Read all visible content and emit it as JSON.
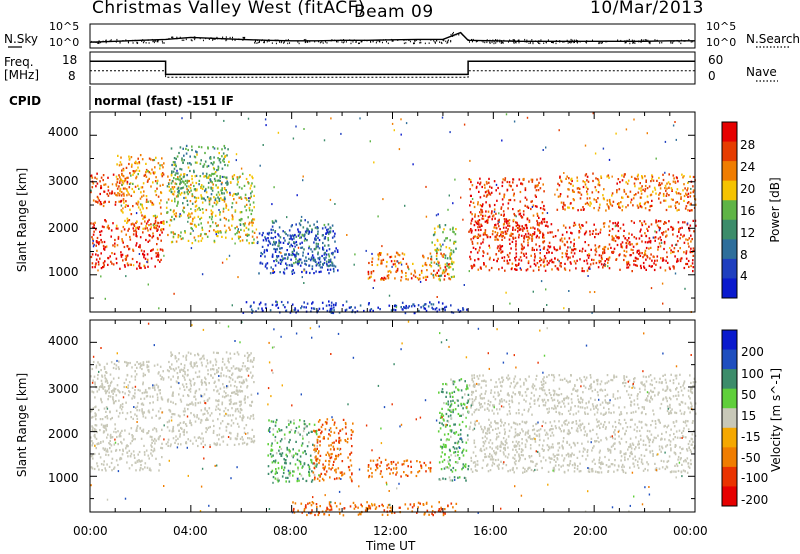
{
  "header": {
    "station": "Christmas Valley West (fitACF)",
    "beam": "Beam 09",
    "date": "10/Mar/2013"
  },
  "side_labels": {
    "nsky": "N.Sky",
    "nsearch": "N.Search",
    "freq": "Freq.",
    "freq_unit": "[MHz]",
    "nave": "Nave",
    "cpid": "CPID",
    "cpid_value": "normal (fast) -151 IF"
  },
  "small_axes": {
    "noise_left_ticks": [
      "10^5",
      "10^0"
    ],
    "noise_right_ticks": [
      "10^5",
      "10^0"
    ],
    "freq_left_ticks": [
      "18",
      "8"
    ],
    "nave_right_ticks": [
      "60",
      "0"
    ]
  },
  "colors": {
    "power_scale": [
      "#0a1acd",
      "#1f3fbf",
      "#2e6e9b",
      "#3c8c6a",
      "#5fb446",
      "#f5c300",
      "#f07d00",
      "#e63c00",
      "#e60000"
    ],
    "velocity_scale": [
      "#e60000",
      "#ea3300",
      "#f07d00",
      "#f5a800",
      "#c8c8b8",
      "#5fcf3a",
      "#3c8c6a",
      "#1f4fbf",
      "#0a1acd"
    ]
  },
  "chart_data": [
    {
      "type": "line",
      "panel": "noise",
      "ylabel_left": "N.Sky",
      "ylabel_right": "N.Search",
      "y_ticks_left": [
        "10^0",
        "10^5"
      ],
      "y_ticks_right": [
        "10^0",
        "10^5"
      ],
      "series": [
        {
          "x_hours": [
            0,
            1,
            2,
            3,
            4,
            5,
            6,
            7,
            8,
            9,
            10,
            11,
            12,
            13,
            14,
            14.7,
            15,
            16,
            17,
            18,
            19,
            20,
            21,
            22,
            23,
            24
          ],
          "values": [
            1.2,
            1.4,
            1.6,
            1.8,
            2.2,
            2.0,
            1.8,
            1.6,
            1.5,
            1.5,
            1.6,
            1.6,
            1.7,
            1.8,
            1.8,
            3.2,
            1.6,
            1.5,
            1.4,
            1.4,
            1.4,
            1.4,
            1.4,
            1.4,
            1.5,
            1.5
          ]
        }
      ]
    },
    {
      "type": "line",
      "panel": "frequency",
      "ylabel_left": "Freq. [MHz]",
      "ylabel_right": "Nave",
      "y_ticks_left": [
        "8",
        "18"
      ],
      "y_ticks_right": [
        "0",
        "60"
      ],
      "series": [
        {
          "x_hours": [
            0,
            3,
            3,
            15,
            15,
            24
          ],
          "values": [
            15.5,
            15.5,
            10.6,
            10.6,
            15.5,
            15.5
          ]
        },
        {
          "x_hours": [
            0,
            3,
            3,
            15,
            15,
            24
          ],
          "values": [
            12,
            12,
            9.5,
            9.5,
            12,
            12
          ]
        }
      ]
    },
    {
      "type": "heatmap",
      "panel": "power",
      "ylabel": "Slant Range [km]",
      "y_ticks": [
        1000,
        2000,
        3000,
        4000
      ],
      "ylim": [
        200,
        4500
      ],
      "colorbar_label": "Power [dB]",
      "colorbar_ticks": [
        4,
        8,
        12,
        16,
        20,
        24,
        28
      ],
      "regions": [
        {
          "t0": 0.0,
          "t1": 2.9,
          "r0": 1150,
          "r1": 2200,
          "v": 30
        },
        {
          "t0": 0.0,
          "t1": 1.5,
          "r0": 2500,
          "r1": 3200,
          "v": 29
        },
        {
          "t0": 1.0,
          "t1": 2.9,
          "r0": 2000,
          "r1": 3600,
          "v": 24
        },
        {
          "t0": 3.0,
          "t1": 6.5,
          "r0": 1700,
          "r1": 3200,
          "v": 20
        },
        {
          "t0": 3.2,
          "t1": 5.5,
          "r0": 2600,
          "r1": 3800,
          "v": 16
        },
        {
          "t0": 6.6,
          "t1": 9.8,
          "r0": 1050,
          "r1": 2000,
          "v": 6
        },
        {
          "t0": 7.2,
          "t1": 9.6,
          "r0": 1200,
          "r1": 2200,
          "v": 12
        },
        {
          "t0": 11.0,
          "t1": 14.3,
          "r0": 900,
          "r1": 1500,
          "v": 26
        },
        {
          "t0": 13.5,
          "t1": 14.5,
          "r0": 900,
          "r1": 2100,
          "v": 18
        },
        {
          "t0": 15.0,
          "t1": 24.0,
          "r0": 1100,
          "r1": 2200,
          "v": 30
        },
        {
          "t0": 15.0,
          "t1": 18.0,
          "r0": 1800,
          "r1": 3100,
          "v": 29
        },
        {
          "t0": 18.5,
          "t1": 24.0,
          "r0": 2400,
          "r1": 3200,
          "v": 26
        },
        {
          "t0": 6.0,
          "t1": 15.0,
          "r0": 200,
          "r1": 450,
          "v": 6
        }
      ]
    },
    {
      "type": "heatmap",
      "panel": "velocity",
      "ylabel": "Slant Range [km]",
      "y_ticks": [
        1000,
        2000,
        3000,
        4000
      ],
      "ylim": [
        200,
        4500
      ],
      "colorbar_label": "Velocity [m s^-1]",
      "colorbar_ticks": [
        -200,
        -100,
        -50,
        -15,
        15,
        50,
        100,
        200
      ],
      "regions": [
        {
          "t0": 0.0,
          "t1": 2.9,
          "r0": 1150,
          "r1": 2200,
          "v": 0
        },
        {
          "t0": 0.0,
          "t1": 2.9,
          "r0": 2300,
          "r1": 3600,
          "v": 0
        },
        {
          "t0": 3.0,
          "t1": 6.5,
          "r0": 1700,
          "r1": 3800,
          "v": 0
        },
        {
          "t0": 7.0,
          "t1": 9.0,
          "r0": 900,
          "r1": 2300,
          "v": 45
        },
        {
          "t0": 8.8,
          "t1": 10.4,
          "r0": 900,
          "r1": 2300,
          "v": -90
        },
        {
          "t0": 11.0,
          "t1": 13.5,
          "r0": 1000,
          "r1": 1400,
          "v": -90
        },
        {
          "t0": 13.8,
          "t1": 15.0,
          "r0": 900,
          "r1": 3200,
          "v": 45
        },
        {
          "t0": 15.0,
          "t1": 24.0,
          "r0": 1100,
          "r1": 2300,
          "v": 0
        },
        {
          "t0": 15.0,
          "t1": 24.0,
          "r0": 2400,
          "r1": 3300,
          "v": 0
        },
        {
          "t0": 8.0,
          "t1": 14.5,
          "r0": 150,
          "r1": 450,
          "v": -90
        }
      ]
    }
  ],
  "xaxis": {
    "label": "Time UT",
    "ticks": [
      "00:00",
      "04:00",
      "08:00",
      "12:00",
      "16:00",
      "20:00",
      "00:00"
    ]
  }
}
